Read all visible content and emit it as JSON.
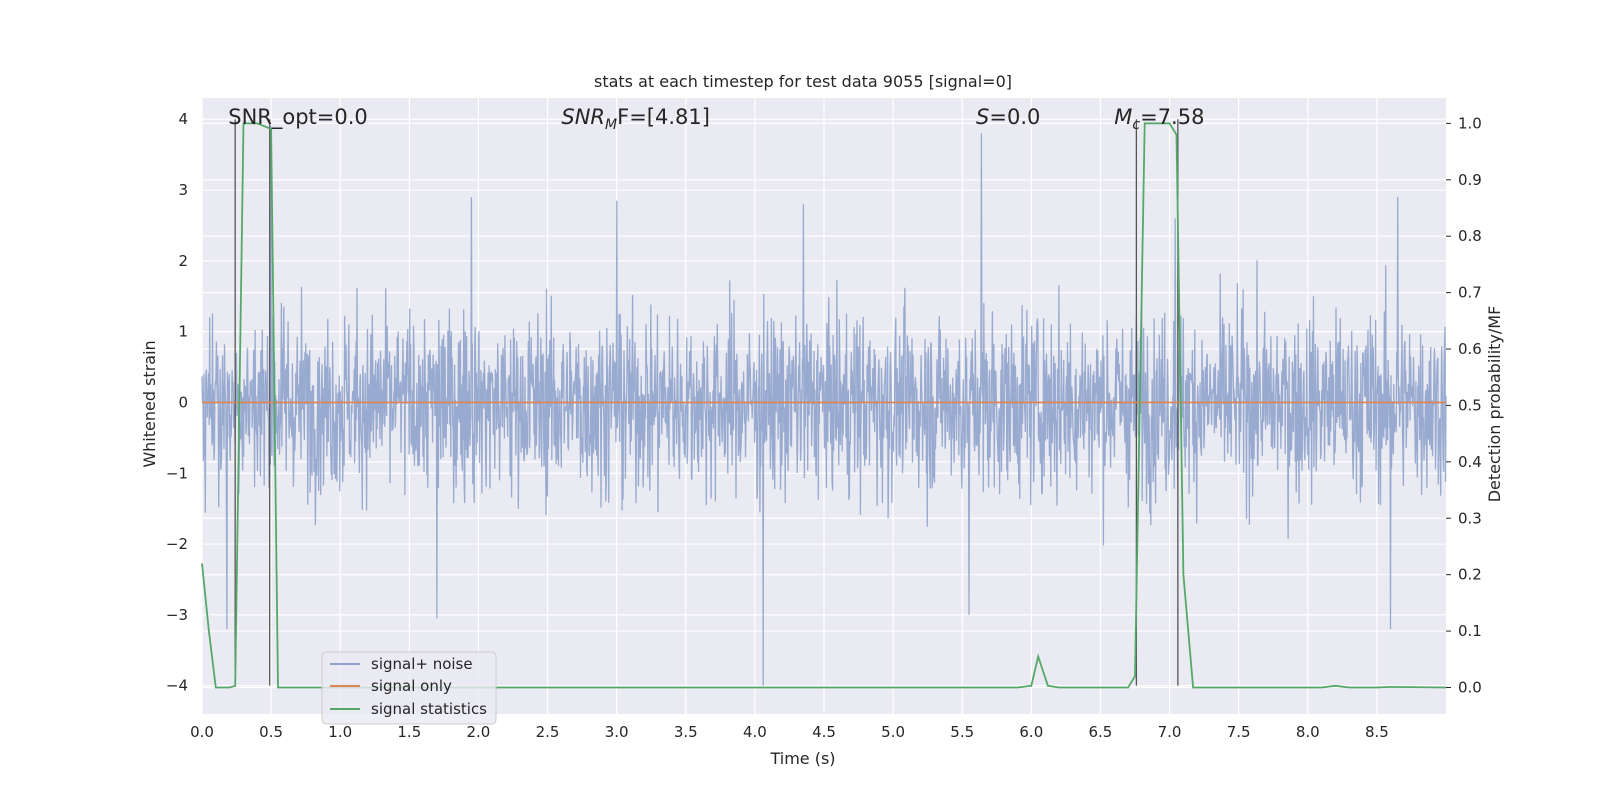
{
  "chart_data": {
    "type": "line",
    "title": "stats at each timestep for test data 9055 [signal=0]",
    "xlabel": "Time (s)",
    "ylabel_left": "Whitened strain",
    "ylabel_right": "Detection probability/MF",
    "xlim": [
      0.0,
      9.0
    ],
    "ylim_left": [
      -4.4,
      4.3
    ],
    "ylim_right": [
      -0.047,
      1.045
    ],
    "x_ticks": [
      "0.0",
      "0.5",
      "1.0",
      "1.5",
      "2.0",
      "2.5",
      "3.0",
      "3.5",
      "4.0",
      "4.5",
      "5.0",
      "5.5",
      "6.0",
      "6.5",
      "7.0",
      "7.5",
      "8.0",
      "8.5"
    ],
    "y_left_ticks": [
      "4",
      "3",
      "2",
      "1",
      "0",
      "−1",
      "−2",
      "−3",
      "−4"
    ],
    "y_right_ticks": [
      "1.0",
      "0.9",
      "0.8",
      "0.7",
      "0.6",
      "0.5",
      "0.4",
      "0.3",
      "0.2",
      "0.1",
      "0.0"
    ],
    "grid": true,
    "legend_position": "lower-left",
    "annotations": [
      {
        "id": "snr-opt",
        "text": "SNR_opt=0.0",
        "x": 0.19
      },
      {
        "id": "snr-mf",
        "text": "SNR",
        "sub": "M",
        "suffix": "F=[4.81]",
        "x": 2.6
      },
      {
        "id": "s-val",
        "text": "S",
        "suffix": "=0.0",
        "x": 5.6
      },
      {
        "id": "mc-val",
        "text": "M",
        "sub": "c",
        "suffix": "=7.58",
        "x": 6.6
      }
    ],
    "series": [
      {
        "name": "signal+ noise",
        "color": "#8fa3cb",
        "envelope_upper_typical": 1.2,
        "envelope_lower_typical": -1.3,
        "peaks": [
          [
            0.5,
            3.9
          ],
          [
            5.64,
            3.8
          ],
          [
            1.95,
            2.9
          ],
          [
            3.0,
            2.85
          ],
          [
            4.35,
            2.8
          ],
          [
            8.65,
            2.9
          ],
          [
            7.04,
            2.6
          ],
          [
            1.7,
            -3.05
          ],
          [
            0.18,
            -3.2
          ],
          [
            4.06,
            -4.0
          ],
          [
            8.6,
            -3.2
          ],
          [
            5.55,
            -3.0
          ]
        ]
      },
      {
        "name": "signal only",
        "color": "#dd8452",
        "values_constant": 0.0
      },
      {
        "name": "signal statistics",
        "color": "#55a868",
        "axis": "right",
        "x": [
          0.0,
          0.05,
          0.1,
          0.15,
          0.2,
          0.24,
          0.3,
          0.35,
          0.4,
          0.45,
          0.5,
          0.55,
          0.6,
          5.9,
          6.0,
          6.05,
          6.12,
          6.2,
          6.7,
          6.75,
          6.82,
          6.95,
          7.0,
          7.05,
          7.1,
          7.17,
          7.3,
          8.1,
          8.2,
          8.3,
          8.5,
          8.6,
          9.0
        ],
        "y": [
          0.22,
          0.1,
          0.0,
          0.0,
          0.0,
          0.003,
          1.0,
          1.0,
          1.0,
          0.995,
          0.99,
          0.0,
          0.0,
          0.0,
          0.003,
          0.055,
          0.003,
          0.0,
          0.0,
          0.02,
          1.0,
          1.0,
          1.0,
          0.98,
          0.2,
          0.0,
          0.0,
          0.0,
          0.003,
          0.0,
          0.0,
          0.001,
          0.0
        ]
      }
    ],
    "vertical_markers": [
      0.24,
      0.49,
      6.76,
      7.06
    ]
  }
}
